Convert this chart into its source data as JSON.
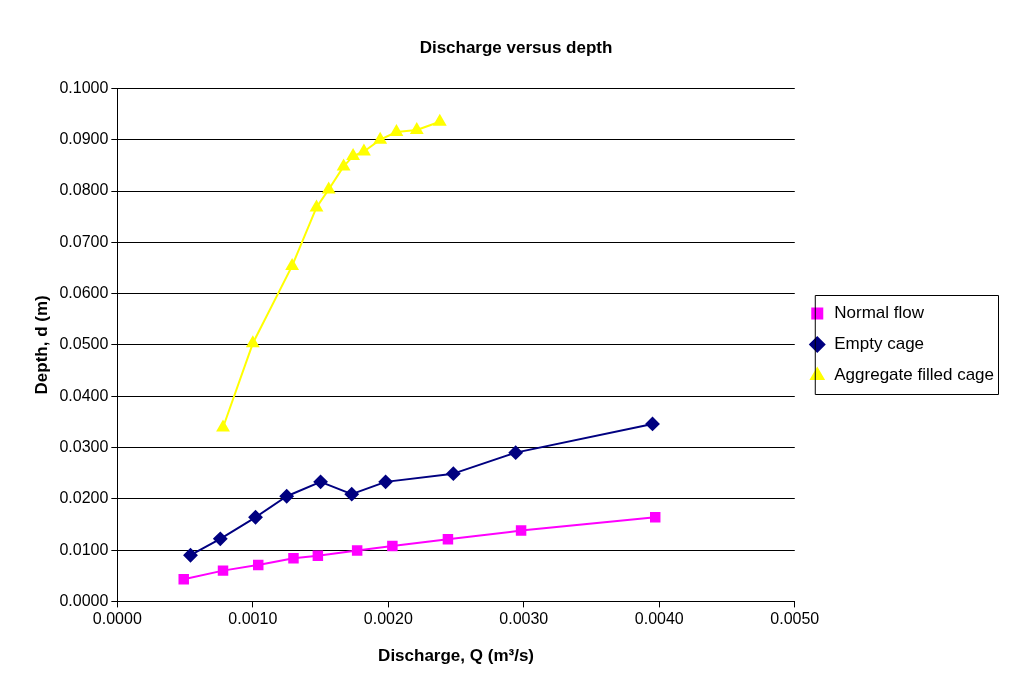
{
  "chart_data": {
    "type": "line",
    "title": "Discharge versus depth",
    "xlabel": "Discharge, Q (m³/s)",
    "ylabel": "Depth, d (m)",
    "xlim": [
      0,
      0.005
    ],
    "xticks": [
      {
        "value": 0,
        "label": "0.0000"
      },
      {
        "value": 0.001,
        "label": "0.0010"
      },
      {
        "value": 0.002,
        "label": "0.0020"
      },
      {
        "value": 0.003,
        "label": "0.0030"
      },
      {
        "value": 0.004,
        "label": "0.0040"
      },
      {
        "value": 0.005,
        "label": "0.0050"
      }
    ],
    "ylim": [
      0,
      0.1
    ],
    "yticks": [
      {
        "value": 0,
        "label": "0.0000"
      },
      {
        "value": 0.01,
        "label": "0.0100"
      },
      {
        "value": 0.02,
        "label": "0.0200"
      },
      {
        "value": 0.03,
        "label": "0.0300"
      },
      {
        "value": 0.04,
        "label": "0.0400"
      },
      {
        "value": 0.05,
        "label": "0.0500"
      },
      {
        "value": 0.06,
        "label": "0.0600"
      },
      {
        "value": 0.07,
        "label": "0.0700"
      },
      {
        "value": 0.08,
        "label": "0.0800"
      },
      {
        "value": 0.09,
        "label": "0.0900"
      },
      {
        "value": 0.1,
        "label": "0.1000"
      }
    ],
    "grid": "y",
    "legend": "right",
    "line_style": "solid",
    "series": [
      {
        "name": "Normal flow",
        "color": "#ff00ff",
        "marker": "square",
        "x": [
          0.00049,
          0.00078,
          0.00104,
          0.0013,
          0.00148,
          0.00177,
          0.00203,
          0.00244,
          0.00298,
          0.00397
        ],
        "values": [
          0.0043,
          0.006,
          0.0071,
          0.0084,
          0.0089,
          0.0099,
          0.0108,
          0.0121,
          0.0138,
          0.0164
        ]
      },
      {
        "name": "Empty cage",
        "color": "#000080",
        "marker": "diamond",
        "x": [
          0.00054,
          0.00076,
          0.00102,
          0.00125,
          0.0015,
          0.00173,
          0.00198,
          0.00248,
          0.00294,
          0.00395
        ],
        "values": [
          0.009,
          0.0122,
          0.0164,
          0.0205,
          0.0233,
          0.0209,
          0.0233,
          0.0249,
          0.029,
          0.0346
        ]
      },
      {
        "name": "Aggregate filled cage",
        "color": "#ffff00",
        "marker": "triangle",
        "x": [
          0.00078,
          0.001,
          0.00129,
          0.00147,
          0.00156,
          0.00167,
          0.00174,
          0.00182,
          0.00194,
          0.00206,
          0.00221,
          0.00238
        ],
        "values": [
          0.0339,
          0.0503,
          0.0654,
          0.0768,
          0.0803,
          0.0848,
          0.0868,
          0.0877,
          0.09,
          0.0915,
          0.0919,
          0.0935
        ]
      }
    ]
  }
}
